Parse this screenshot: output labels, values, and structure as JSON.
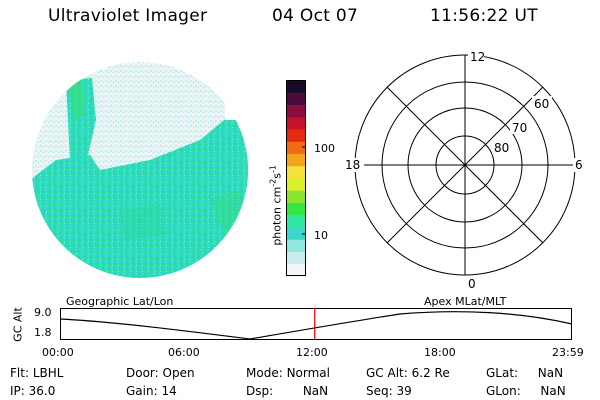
{
  "header": {
    "instrument": "Ultraviolet Imager",
    "date": "04 Oct 07",
    "time": "11:56:22 UT"
  },
  "colorbar": {
    "unit_label": "photon cm",
    "exp1": "-2",
    "mid": "s",
    "exp2": "-1",
    "tick_100": "100",
    "tick_10": "10",
    "colors": [
      "#f2f6f6",
      "#c8ecec",
      "#8ee8e0",
      "#39d8c8",
      "#2ce8a0",
      "#33e640",
      "#8ae62e",
      "#dcef2d",
      "#f7e23a",
      "#f5a21e",
      "#f26a12",
      "#e52a10",
      "#c4122a",
      "#8c0e3d",
      "#4a0a3e",
      "#1a0a2a"
    ]
  },
  "polar_grid": {
    "mlt_12": "12",
    "mlt_18": "18",
    "mlt_6": "6",
    "mlt_0": "0",
    "lat_60": "60",
    "lat_70": "70",
    "lat_80": "80"
  },
  "altitude_plot": {
    "ylabel": "GC Alt",
    "ymax": "9.0",
    "ymin": "1.8",
    "left_label": "Geographic Lat/Lon",
    "right_label": "Apex  MLat/MLT",
    "xticks": [
      "00:00",
      "06:00",
      "12:00",
      "18:00",
      "23:59"
    ],
    "marker_time_hours": 11.94
  },
  "footer": {
    "row1": [
      {
        "label": "Flt:",
        "value": "LBHL"
      },
      {
        "label": "Door:",
        "value": "Open"
      },
      {
        "label": "Mode:",
        "value": "Normal"
      },
      {
        "label": "GC Alt:",
        "value": "6.2 Re"
      },
      {
        "label": "GLat:",
        "value": "NaN"
      }
    ],
    "row2": [
      {
        "label": "IP:",
        "value": "36.0"
      },
      {
        "label": "Gain:",
        "value": "14"
      },
      {
        "label": "Dsp:",
        "value": "NaN"
      },
      {
        "label": "Seq:",
        "value": "39"
      },
      {
        "label": "GLon:",
        "value": "NaN"
      }
    ]
  }
}
